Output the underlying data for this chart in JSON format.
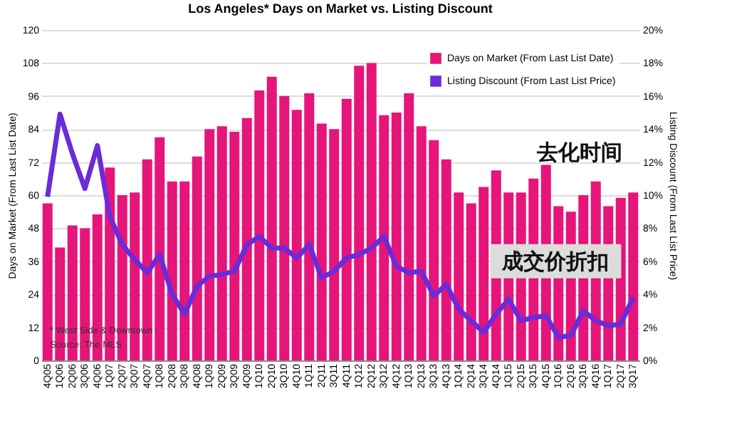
{
  "chart_data": {
    "type": "bar",
    "title": "Los Angeles* Days on Market vs. Listing Discount",
    "categories": [
      "4Q05",
      "1Q06",
      "2Q06",
      "3Q06",
      "4Q06",
      "1Q07",
      "2Q07",
      "3Q07",
      "4Q07",
      "1Q08",
      "2Q08",
      "3Q08",
      "4Q08",
      "1Q09",
      "2Q09",
      "3Q09",
      "4Q09",
      "1Q10",
      "2Q10",
      "3Q10",
      "4Q10",
      "1Q11",
      "2Q11",
      "3Q11",
      "4Q11",
      "1Q12",
      "2Q12",
      "3Q12",
      "4Q12",
      "1Q13",
      "2Q13",
      "3Q13",
      "4Q13",
      "1Q14",
      "2Q14",
      "3Q14",
      "4Q14",
      "1Q15",
      "2Q15",
      "3Q15",
      "4Q15",
      "1Q16",
      "2Q16",
      "3Q16",
      "4Q16",
      "1Q17",
      "2Q17",
      "3Q17"
    ],
    "series": [
      {
        "name": "Days on Market (From Last List Date)",
        "color": "#e6157a",
        "values": [
          57,
          41,
          49,
          48,
          53,
          70,
          60,
          61,
          73,
          81,
          65,
          65,
          74,
          84,
          85,
          83,
          88,
          98,
          103,
          96,
          91,
          97,
          86,
          84,
          95,
          107,
          108,
          89,
          90,
          97,
          85,
          80,
          73,
          61,
          57,
          63,
          69,
          61,
          61,
          66,
          71,
          56,
          54,
          60,
          65,
          56,
          59,
          61
        ]
      },
      {
        "name": "Listing Discount (From Last List Price)",
        "type": "line",
        "axis": "y2",
        "color": "#6b2bd9",
        "values": [
          9.9,
          14.9,
          12.5,
          10.4,
          13,
          8.7,
          7.0,
          6.1,
          5.3,
          6.4,
          4.0,
          2.8,
          4.5,
          5.1,
          5.2,
          5.4,
          7.0,
          7.5,
          6.8,
          6.8,
          6.2,
          7.0,
          5.0,
          5.4,
          6.2,
          6.4,
          6.8,
          7.5,
          5.7,
          5.3,
          5.4,
          3.9,
          4.6,
          3.1,
          2.4,
          1.7,
          2.8,
          3.7,
          2.4,
          2.6,
          2.7,
          1.4,
          1.5,
          3.0,
          2.4,
          2.1,
          2.2,
          3.8
        ]
      }
    ],
    "ylabel": "Days on Market (From Last List Date)",
    "y2label": "Listing Discount (From Last List Price)",
    "ylim": [
      0,
      120
    ],
    "yticks": [
      0,
      12,
      24,
      36,
      48,
      60,
      72,
      84,
      96,
      108,
      120
    ],
    "y2lim": [
      0,
      20
    ],
    "y2ticks": [
      {
        "value": 0,
        "label": "0%"
      },
      {
        "value": 2,
        "label": "2%"
      },
      {
        "value": 4,
        "label": "4%"
      },
      {
        "value": 6,
        "label": "6%"
      },
      {
        "value": 8,
        "label": "8%"
      },
      {
        "value": 10,
        "label": "10%"
      },
      {
        "value": 12,
        "label": "12%"
      },
      {
        "value": 14,
        "label": "14%"
      },
      {
        "value": 16,
        "label": "16%"
      },
      {
        "value": 18,
        "label": "18%"
      },
      {
        "value": 20,
        "label": "20%"
      }
    ],
    "grid": "y",
    "legend": "top right",
    "annotations": [
      "去化时间",
      "成交价折扣",
      "* West Side & Downtown",
      "Source: The MLS"
    ]
  }
}
